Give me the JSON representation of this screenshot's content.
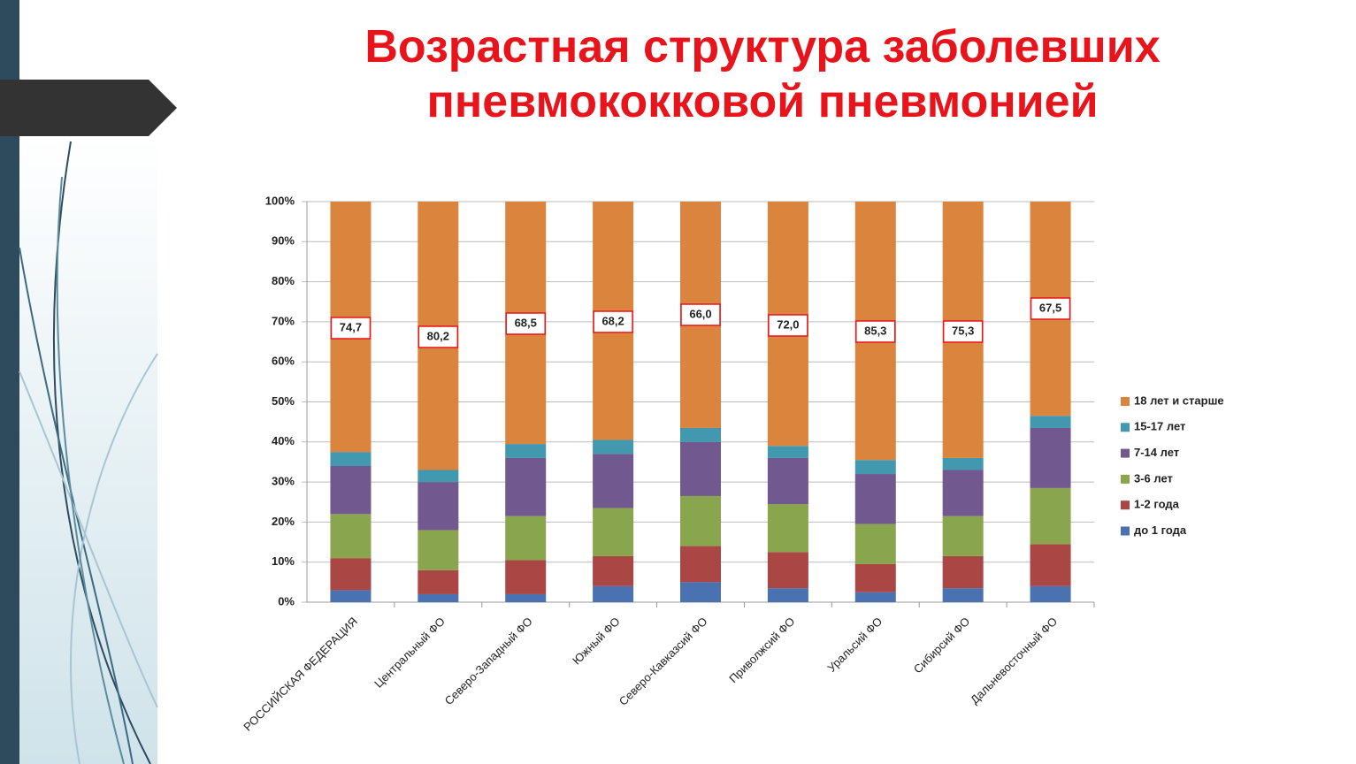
{
  "chart_data": {
    "type": "stacked_bar",
    "title": "Возрастная структура заболевших пневмококковой пневмонией",
    "categories": [
      "РОССИЙСКАЯ ФЕДЕРАЦИЯ",
      "Центральный ФО",
      "Северо-Западный ФО",
      "Южный ФО",
      "Северо-Кавказсий ФО",
      "Приволжсий ФО",
      "Уральсий ФО",
      "Сибирсий ФО",
      "Дальневосточный ФО"
    ],
    "series": [
      {
        "name": "до 1 года",
        "color": "#4a72b0",
        "values": [
          3,
          2,
          2,
          4,
          5,
          3.5,
          2.5,
          3.5,
          4
        ]
      },
      {
        "name": "1-2 года",
        "color": "#aa4643",
        "values": [
          8,
          6,
          8.5,
          7.5,
          9,
          9,
          7,
          8,
          10.5
        ]
      },
      {
        "name": "3-6 лет",
        "color": "#89a54e",
        "values": [
          11,
          10,
          11,
          12,
          12.5,
          12,
          10,
          10,
          14
        ]
      },
      {
        "name": "7-14 лет",
        "color": "#71588f",
        "values": [
          12,
          12,
          14.5,
          13.5,
          13.5,
          11.5,
          12.5,
          11.5,
          15
        ]
      },
      {
        "name": "15-17 лет",
        "color": "#4198af",
        "values": [
          3.5,
          3,
          3.5,
          3.5,
          3.5,
          3,
          3.5,
          3,
          3
        ]
      },
      {
        "name": "18 лет и старше",
        "color": "#db843d",
        "values": [
          62.5,
          67,
          60.5,
          59.5,
          56.5,
          61,
          64.5,
          64,
          53.5
        ]
      }
    ],
    "annotations": [
      "74,7",
      "80,2",
      "68,5",
      "68,2",
      "66,0",
      "72,0",
      "85,3",
      "75,3",
      "67,5"
    ],
    "ylim": [
      0,
      100
    ],
    "yticks": [
      {
        "value": 0,
        "label": "0%"
      },
      {
        "value": 10,
        "label": "10%"
      },
      {
        "value": 20,
        "label": "20%"
      },
      {
        "value": 30,
        "label": "30%"
      },
      {
        "value": 40,
        "label": "40%"
      },
      {
        "value": 50,
        "label": "50%"
      },
      {
        "value": 60,
        "label": "60%"
      },
      {
        "value": 70,
        "label": "70%"
      },
      {
        "value": 80,
        "label": "80%"
      },
      {
        "value": 90,
        "label": "90%"
      },
      {
        "value": 100,
        "label": "100%"
      }
    ],
    "grid": true,
    "legend": "right"
  }
}
